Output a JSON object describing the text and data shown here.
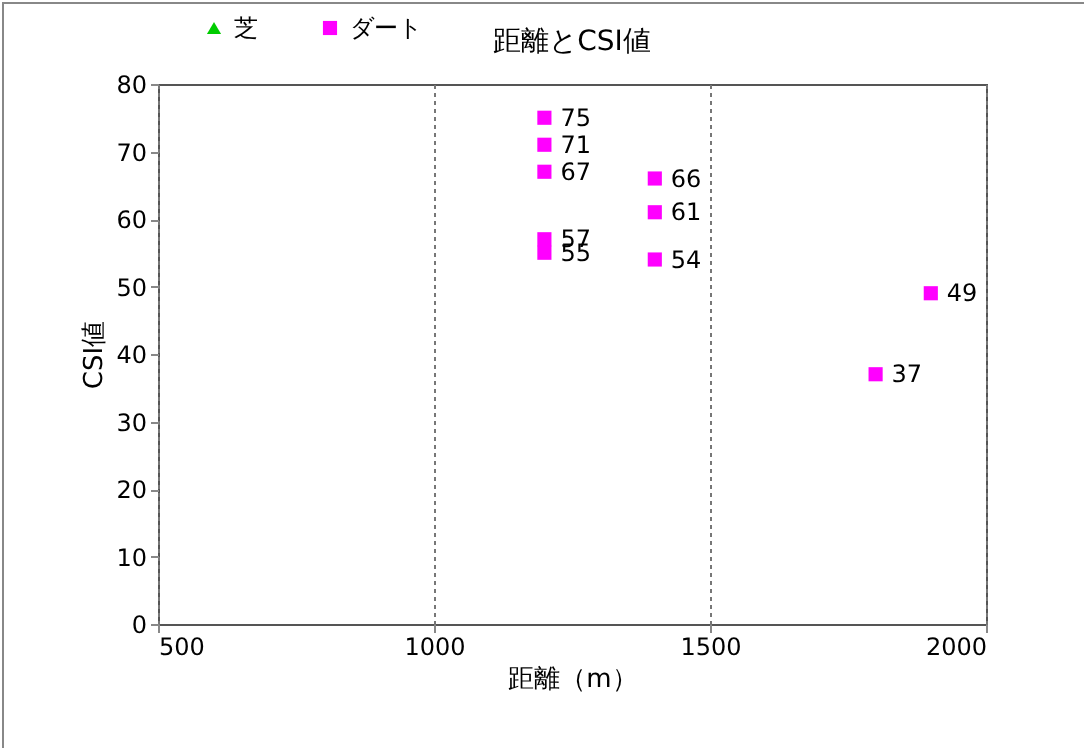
{
  "chart_data": {
    "type": "scatter",
    "title": "距離とCSI値",
    "xlabel": "距離（m）",
    "ylabel": "CSI値",
    "xlim": [
      500,
      2000
    ],
    "xticks": [
      500,
      1000,
      1500,
      2000
    ],
    "ylim": [
      0,
      80
    ],
    "yticks": [
      0,
      10,
      20,
      30,
      40,
      50,
      60,
      70,
      80
    ],
    "grid": "x",
    "legend": "top left",
    "data_labels": true,
    "series": [
      {
        "name": "芝",
        "color": "#00cc00",
        "marker": "triangle"
      },
      {
        "name": "ダート",
        "color": "#ff00ff",
        "marker": "square",
        "x": [
          1200,
          1200,
          1200,
          1200,
          1200,
          1400,
          1400,
          1400,
          1900,
          1800
        ],
        "values": [
          75,
          71,
          67,
          57,
          55,
          66,
          61,
          54,
          49,
          37
        ]
      }
    ]
  }
}
